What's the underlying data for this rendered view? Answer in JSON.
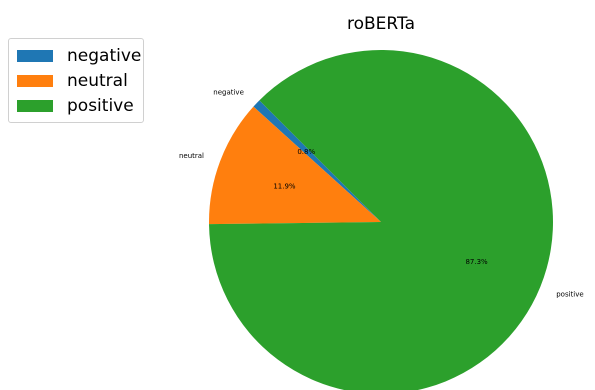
{
  "chart_data": {
    "type": "pie",
    "title": "roBERTa",
    "labels": [
      "negative",
      "neutral",
      "positive"
    ],
    "values": [
      0.8,
      11.9,
      87.3
    ],
    "value_labels": [
      "0.8%",
      "11.9%",
      "87.3%"
    ],
    "colors": [
      "#1f77b4",
      "#ff7f0e",
      "#2ca02c"
    ],
    "start_angle_deg": 135,
    "direction": "counterclockwise",
    "legend": {
      "placement": "top-left",
      "entries": [
        "negative",
        "neutral",
        "positive"
      ]
    }
  }
}
